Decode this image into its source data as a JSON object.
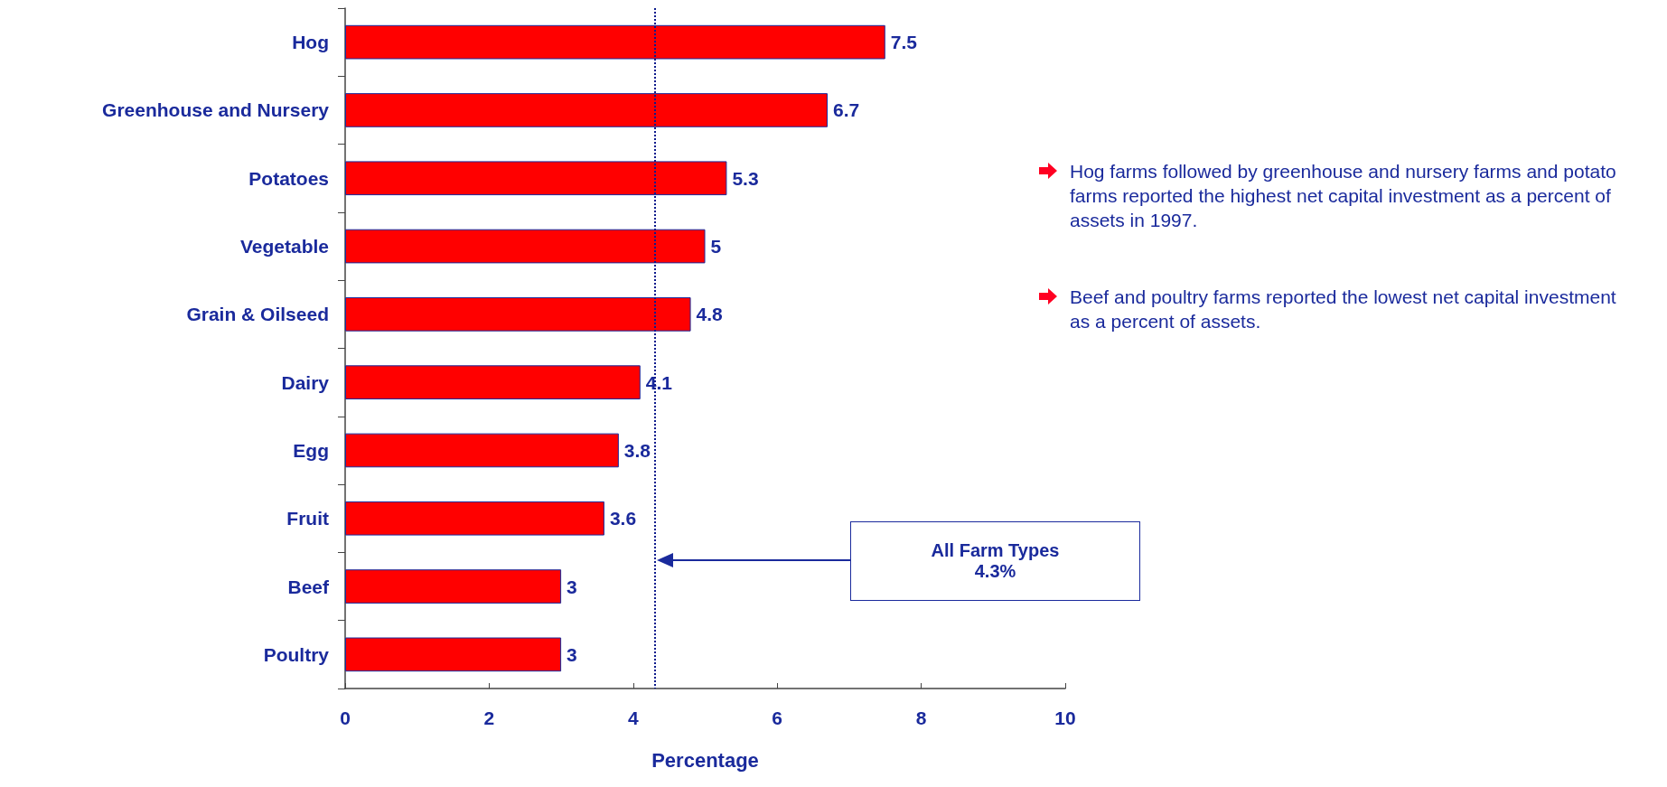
{
  "chart_data": {
    "type": "bar",
    "orientation": "horizontal",
    "xlabel": "Percentage",
    "categories": [
      "Hog",
      "Greenhouse and Nursery",
      "Potatoes",
      "Vegetable",
      "Grain & Oilseed",
      "Dairy",
      "Egg",
      "Fruit",
      "Beef",
      "Poultry"
    ],
    "values": [
      7.5,
      6.7,
      5.3,
      5,
      4.8,
      4.1,
      3.8,
      3.6,
      3,
      3
    ],
    "color": "#ff0000",
    "xlim": [
      0,
      10
    ],
    "xticks": [
      0,
      2,
      4,
      6,
      8,
      10
    ],
    "data_labels": true,
    "ref_lines": [
      {
        "axis": "x",
        "value": 4.3,
        "label": "All Farm Types\n4.3%",
        "line_style": "dotted",
        "color": "#0a1a8c"
      }
    ],
    "annotations": [
      "Hog farms followed by greenhouse and nursery farms and potato farms reported the highest net capital investment as a percent of assets in 1997.",
      "Beef and poultry farms reported the lowest net capital investment as a percent of assets."
    ]
  }
}
